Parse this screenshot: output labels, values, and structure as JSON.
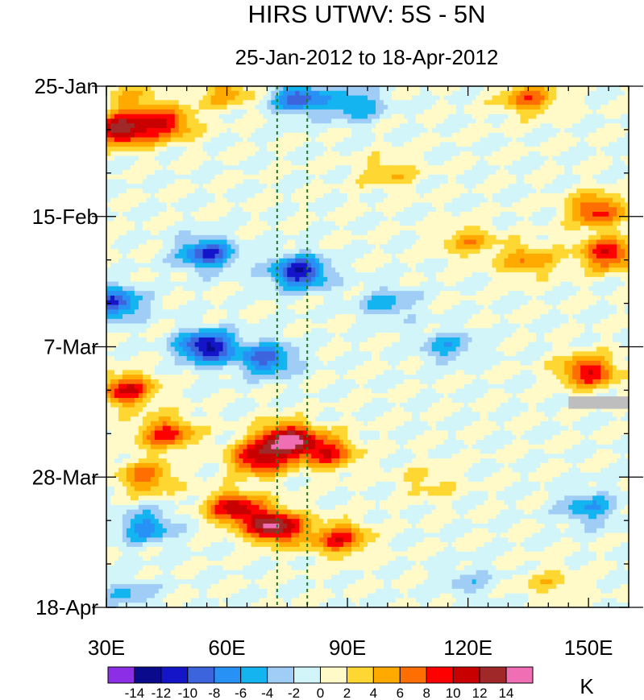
{
  "chart_data": {
    "type": "heatmap",
    "title": "HIRS UTWV: 5S - 5N",
    "subtitle": "25-Jan-2012 to 18-Apr-2012",
    "x_ticks": [
      {
        "label": "30E",
        "value": 30
      },
      {
        "label": "60E",
        "value": 60
      },
      {
        "label": "90E",
        "value": 90
      },
      {
        "label": "120E",
        "value": 120
      },
      {
        "label": "150E",
        "value": 150
      }
    ],
    "y_ticks": [
      {
        "label": "25-Jan",
        "day": 0
      },
      {
        "label": "15-Feb",
        "day": 21
      },
      {
        "label": "7-Mar",
        "day": 42
      },
      {
        "label": "28-Mar",
        "day": 63
      },
      {
        "label": "18-Apr",
        "day": 84
      }
    ],
    "xlim": [
      30,
      160
    ],
    "ylim_days": [
      0,
      84
    ],
    "reference_lines_lon": [
      72.5,
      80
    ],
    "colorbar": {
      "unit": "K",
      "levels": [
        -14,
        -12,
        -10,
        -8,
        -6,
        -4,
        -2,
        0,
        2,
        4,
        6,
        8,
        10,
        12,
        14
      ],
      "labels": [
        "-14",
        "-12",
        "-10",
        "-8",
        "-6",
        "-4",
        "-2",
        "0",
        "2",
        "4",
        "6",
        "8",
        "10",
        "12",
        "14"
      ],
      "colors": [
        "#8c2ee6",
        "#0a0a8c",
        "#1414c8",
        "#3c64dc",
        "#2891f5",
        "#14b4f0",
        "#a0cdf5",
        "#d2f5fa",
        "#fffac8",
        "#ffd732",
        "#ffaa00",
        "#ff6e00",
        "#ff0000",
        "#c80000",
        "#a02828",
        "#f06eb4"
      ]
    },
    "anomaly_features": [
      {
        "lon": 34,
        "day": 7,
        "value": 13
      },
      {
        "lon": 45,
        "day": 6,
        "value": 9
      },
      {
        "lon": 37,
        "day": 2,
        "value": 4
      },
      {
        "lon": 60,
        "day": 1,
        "value": 5
      },
      {
        "lon": 78,
        "day": 2,
        "value": -9
      },
      {
        "lon": 92,
        "day": 3,
        "value": -6
      },
      {
        "lon": 135,
        "day": 2,
        "value": 7
      },
      {
        "lon": 152,
        "day": 20,
        "value": 9
      },
      {
        "lon": 155,
        "day": 27,
        "value": 10
      },
      {
        "lon": 150,
        "day": 46,
        "value": 10
      },
      {
        "lon": 100,
        "day": 14,
        "value": 4
      },
      {
        "lon": 120,
        "day": 25,
        "value": 5
      },
      {
        "lon": 135,
        "day": 28,
        "value": 6
      },
      {
        "lon": 55,
        "day": 27,
        "value": -10
      },
      {
        "lon": 78,
        "day": 30,
        "value": -12
      },
      {
        "lon": 32,
        "day": 35,
        "value": -10
      },
      {
        "lon": 55,
        "day": 42,
        "value": -13
      },
      {
        "lon": 70,
        "day": 44,
        "value": -9
      },
      {
        "lon": 100,
        "day": 35,
        "value": -5
      },
      {
        "lon": 115,
        "day": 42,
        "value": -5
      },
      {
        "lon": 35,
        "day": 49,
        "value": 10
      },
      {
        "lon": 45,
        "day": 56,
        "value": 9
      },
      {
        "lon": 75,
        "day": 57,
        "value": 14
      },
      {
        "lon": 68,
        "day": 60,
        "value": 11
      },
      {
        "lon": 85,
        "day": 59,
        "value": 9
      },
      {
        "lon": 40,
        "day": 63,
        "value": 7
      },
      {
        "lon": 72,
        "day": 71,
        "value": 14
      },
      {
        "lon": 62,
        "day": 68,
        "value": 11
      },
      {
        "lon": 88,
        "day": 73,
        "value": 9
      },
      {
        "lon": 40,
        "day": 71,
        "value": -7
      },
      {
        "lon": 110,
        "day": 64,
        "value": 3
      },
      {
        "lon": 150,
        "day": 68,
        "value": -6
      },
      {
        "lon": 120,
        "day": 80,
        "value": -3
      },
      {
        "lon": 35,
        "day": 82,
        "value": -4
      },
      {
        "lon": 140,
        "day": 80,
        "value": 3
      }
    ],
    "missing_data": [
      {
        "lon_range": [
          145,
          160
        ],
        "day_range": [
          50,
          52
        ]
      }
    ]
  }
}
